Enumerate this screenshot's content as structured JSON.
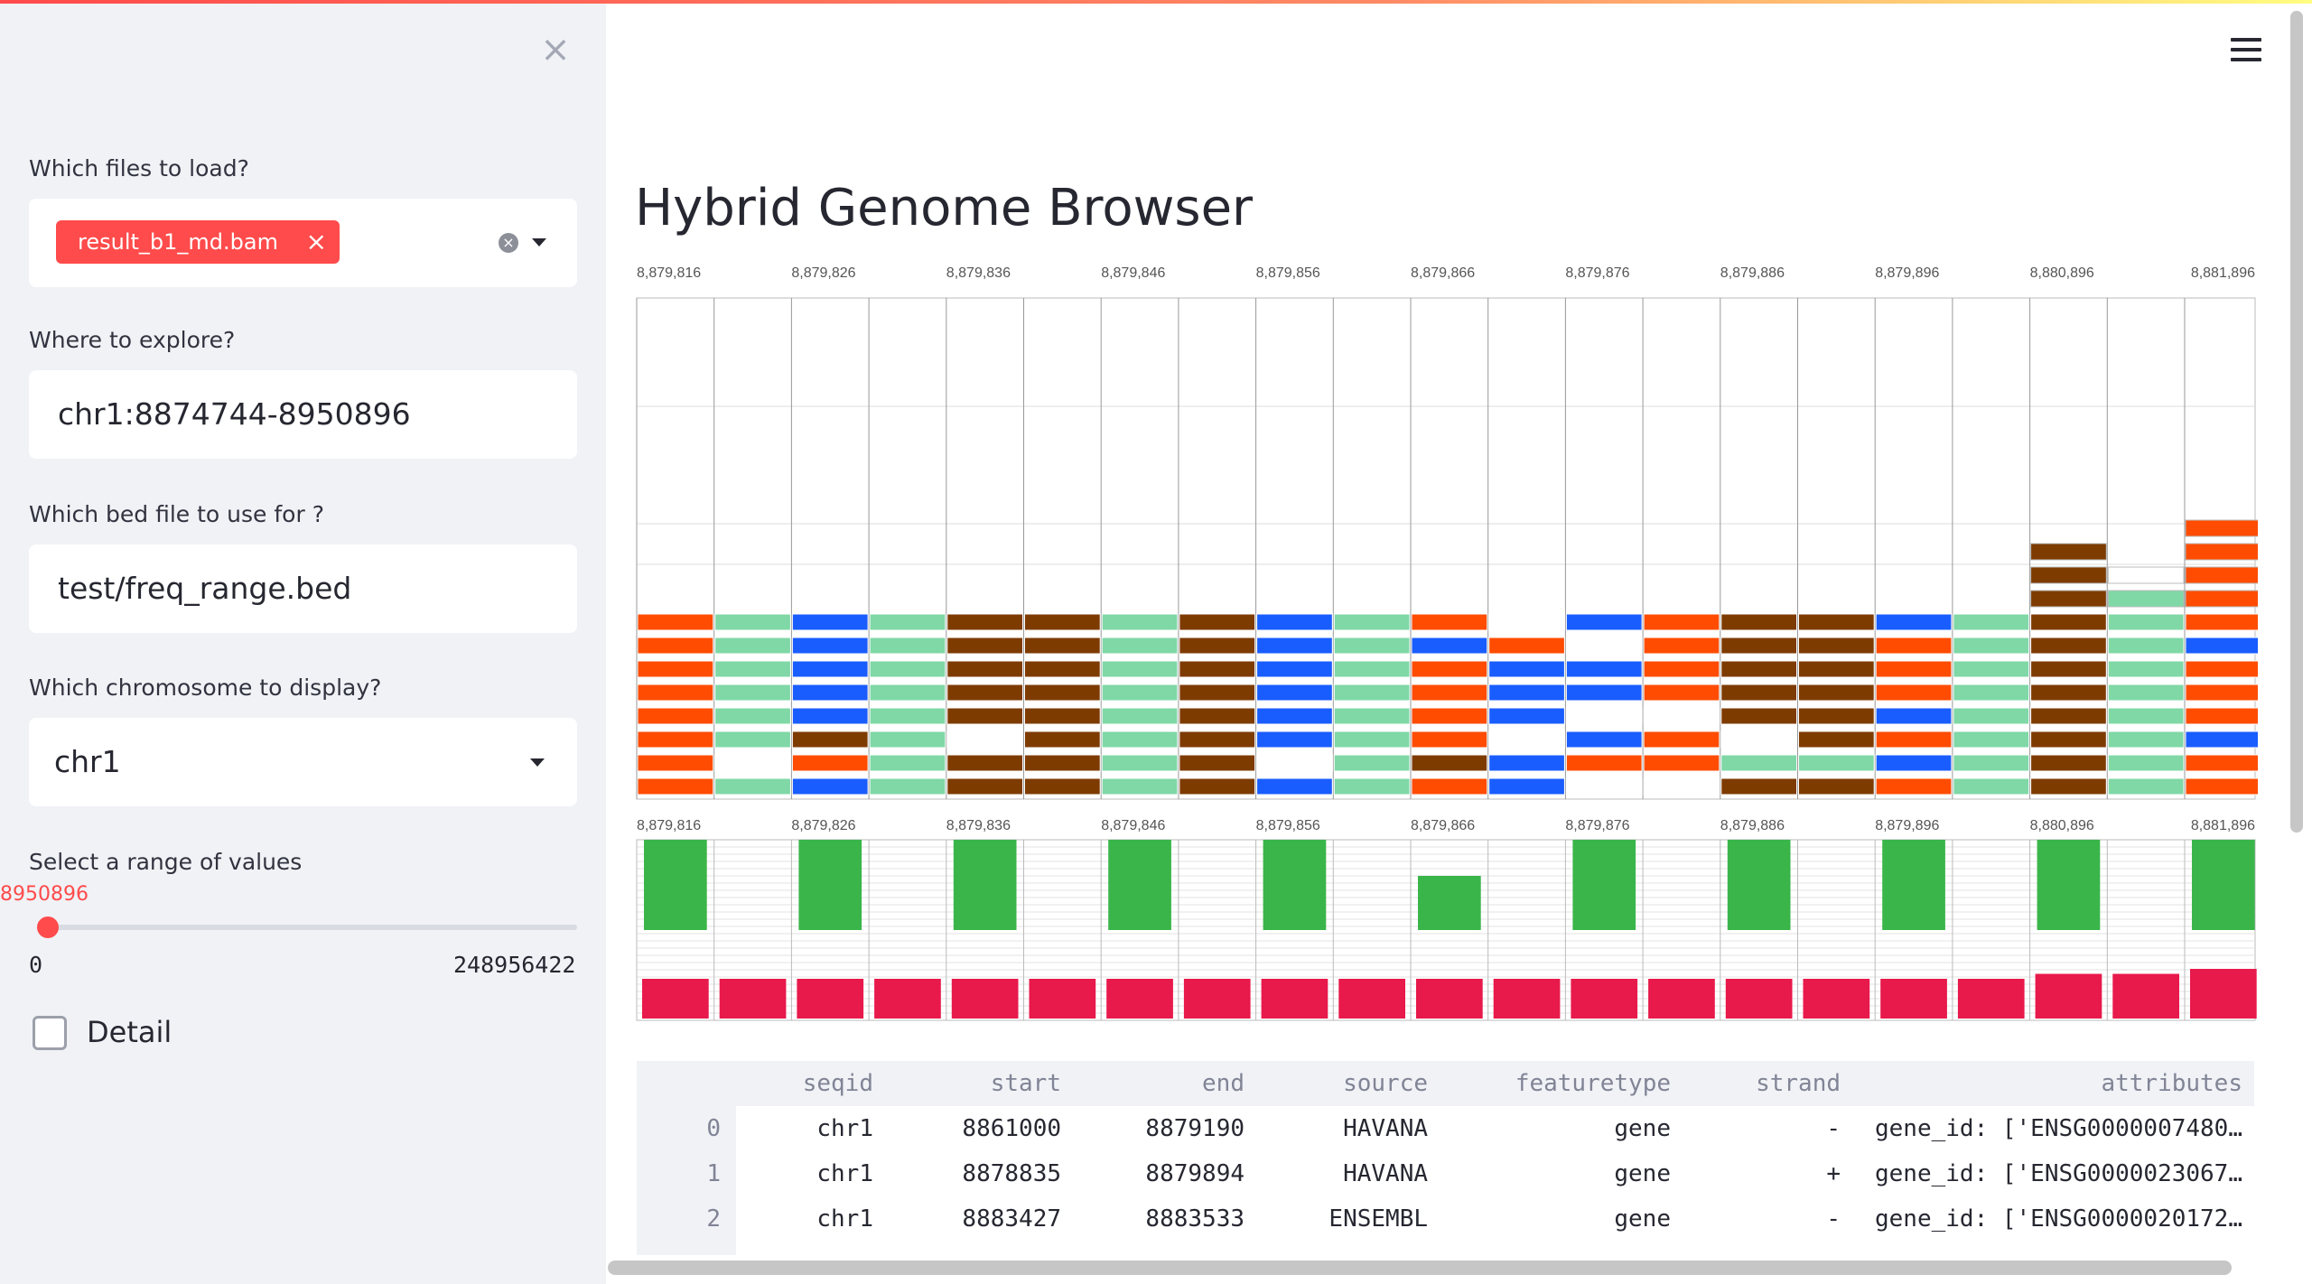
{
  "sidebar": {
    "close_icon": "close-icon",
    "files_label": "Which files to load?",
    "files_selected": [
      "result_b1_md.bam"
    ],
    "explore_label": "Where to explore?",
    "explore_value": "chr1:8874744-8950896",
    "bed_label": "Which bed file to use for ?",
    "bed_value": "test/freq_range.bed",
    "chrom_label": "Which chromosome to display?",
    "chrom_value": "chr1",
    "range_label": "Select a range of values",
    "range_current": "8950896",
    "range_min": "0",
    "range_max": "248956422",
    "detail_label": "Detail",
    "detail_checked": false
  },
  "main": {
    "title": "Hybrid Genome Browser",
    "menu_icon": "hamburger-menu-icon",
    "positions": [
      "8,879,816",
      "8,879,826",
      "8,879,836",
      "8,879,846",
      "8,879,856",
      "8,879,866",
      "8,879,876",
      "8,879,886",
      "8,879,896",
      "8,880,896",
      "8,881,896"
    ],
    "colors": {
      "orange": "#ff4c00",
      "teal": "#7fd8a6",
      "blue": "#1a5dff",
      "brown": "#7e3b00",
      "green": "#3ab54a",
      "red": "#e8194b",
      "accent": "#ff4b4b"
    },
    "coverage_green": [
      1,
      1,
      1,
      1,
      1,
      0.6,
      1,
      1,
      1,
      1,
      1
    ],
    "coverage_red": [
      0.8,
      0.8,
      0.8,
      0.8,
      0.8,
      0.8,
      0.8,
      0.8,
      0.8,
      0.8,
      0.8,
      0.8,
      0.8,
      0.8,
      0.8,
      0.8,
      0.8,
      0.8,
      0.9,
      0.9,
      1.0
    ]
  },
  "table": {
    "columns": [
      "seqid",
      "start",
      "end",
      "source",
      "featuretype",
      "strand",
      "attributes"
    ],
    "rows": [
      {
        "idx": "0",
        "seqid": "chr1",
        "start": "8861000",
        "end": "8879190",
        "source": "HAVANA",
        "featuretype": "gene",
        "strand": "-",
        "attributes": "gene_id: ['ENSG0000007480…"
      },
      {
        "idx": "1",
        "seqid": "chr1",
        "start": "8878835",
        "end": "8879894",
        "source": "HAVANA",
        "featuretype": "gene",
        "strand": "+",
        "attributes": "gene_id: ['ENSG0000023067…"
      },
      {
        "idx": "2",
        "seqid": "chr1",
        "start": "8883427",
        "end": "8883533",
        "source": "ENSEMBL",
        "featuretype": "gene",
        "strand": "-",
        "attributes": "gene_id: ['ENSG0000020172…"
      }
    ]
  }
}
